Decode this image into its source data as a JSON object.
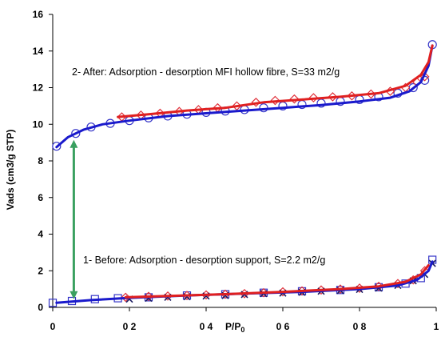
{
  "chart_data": {
    "type": "line",
    "title": "",
    "xlabel": "P/P",
    "xlabel_sub": "0",
    "ylabel": "Vads (cm3/g STP)",
    "xlim": [
      0,
      1
    ],
    "ylim": [
      0,
      16
    ],
    "x_ticks": [
      0,
      0.2,
      0.4,
      0.6,
      0.8,
      1
    ],
    "x_tick_labels": [
      "0",
      "0 2",
      "0 4",
      "0 6",
      "0 8",
      "1"
    ],
    "y_ticks": [
      0,
      2,
      4,
      6,
      8,
      10,
      12,
      14,
      16
    ],
    "y_tick_labels": [
      "0",
      "2",
      "4",
      "6",
      "8",
      "10",
      "12",
      "14",
      "16"
    ],
    "grid": false,
    "colors": {
      "adsorption_marker": "#3535c8",
      "adsorption_fit": "#1a1acc",
      "desorption_marker": "#e0303a",
      "desorption_fit": "#e02020",
      "support_cross": "#1a1a60",
      "arrow": "#3aa060"
    },
    "annotations": [
      "2- After: Adsorption - desorption  MFI hollow fibre, S=33 m2/g",
      "1- Before: Adsorption - desorption  support, S=2.2 m2/g"
    ],
    "series": [
      {
        "marker": "circle",
        "color_key": "adsorption_marker",
        "x": [
          0.01,
          0.06,
          0.1,
          0.15,
          0.2,
          0.25,
          0.3,
          0.35,
          0.4,
          0.45,
          0.5,
          0.55,
          0.6,
          0.65,
          0.7,
          0.75,
          0.8,
          0.85,
          0.9,
          0.94,
          0.97,
          0.99
        ],
        "y": [
          8.8,
          9.5,
          9.85,
          10.05,
          10.2,
          10.35,
          10.45,
          10.55,
          10.65,
          10.72,
          10.8,
          10.9,
          11.0,
          11.08,
          11.15,
          11.25,
          11.35,
          11.5,
          11.7,
          12.0,
          12.4,
          14.35
        ]
      },
      {
        "marker": "diamond",
        "color_key": "desorption_marker",
        "x": [
          0.18,
          0.23,
          0.28,
          0.33,
          0.38,
          0.43,
          0.48,
          0.53,
          0.58,
          0.63,
          0.68,
          0.73,
          0.78,
          0.83,
          0.88,
          0.92,
          0.95,
          0.97
        ],
        "y": [
          10.4,
          10.5,
          10.6,
          10.7,
          10.8,
          10.9,
          11.0,
          11.2,
          11.3,
          11.38,
          11.45,
          11.5,
          11.55,
          11.65,
          11.8,
          12.0,
          12.3,
          12.6
        ]
      },
      {
        "marker": "line",
        "color_key": "adsorption_fit",
        "x": [
          0.01,
          0.04,
          0.08,
          0.13,
          0.2,
          0.3,
          0.4,
          0.5,
          0.6,
          0.7,
          0.8,
          0.88,
          0.93,
          0.96,
          0.98,
          0.99
        ],
        "y": [
          8.75,
          9.3,
          9.7,
          10.0,
          10.2,
          10.45,
          10.6,
          10.75,
          10.9,
          11.05,
          11.25,
          11.45,
          11.8,
          12.3,
          13.2,
          14.3
        ]
      },
      {
        "marker": "line",
        "color_key": "desorption_fit",
        "x": [
          0.17,
          0.25,
          0.35,
          0.45,
          0.55,
          0.65,
          0.75,
          0.85,
          0.92,
          0.96,
          0.98,
          0.99
        ],
        "y": [
          10.4,
          10.55,
          10.75,
          10.9,
          11.2,
          11.35,
          11.5,
          11.7,
          12.1,
          12.7,
          13.4,
          14.3
        ]
      },
      {
        "marker": "square",
        "color_key": "adsorption_marker",
        "x": [
          0.0,
          0.05,
          0.11,
          0.17,
          0.25,
          0.35,
          0.45,
          0.55,
          0.65,
          0.75,
          0.85,
          0.92,
          0.96,
          0.99
        ],
        "y": [
          0.25,
          0.35,
          0.45,
          0.5,
          0.55,
          0.65,
          0.72,
          0.8,
          0.88,
          0.95,
          1.1,
          1.3,
          1.6,
          2.6
        ]
      },
      {
        "marker": "diamond",
        "color_key": "desorption_marker",
        "x": [
          0.19,
          0.25,
          0.3,
          0.35,
          0.4,
          0.45,
          0.5,
          0.55,
          0.6,
          0.65,
          0.7,
          0.75,
          0.8,
          0.85,
          0.9,
          0.94,
          0.97
        ],
        "y": [
          0.55,
          0.6,
          0.62,
          0.65,
          0.68,
          0.72,
          0.75,
          0.8,
          0.85,
          0.9,
          0.95,
          1.0,
          1.05,
          1.15,
          1.3,
          1.5,
          2.0
        ]
      },
      {
        "marker": "cross",
        "color_key": "support_cross",
        "x": [
          0.2,
          0.25,
          0.3,
          0.35,
          0.4,
          0.45,
          0.5,
          0.55,
          0.6,
          0.65,
          0.7,
          0.75,
          0.8,
          0.85,
          0.9,
          0.94,
          0.97,
          0.99
        ],
        "y": [
          0.45,
          0.5,
          0.55,
          0.58,
          0.62,
          0.65,
          0.7,
          0.75,
          0.78,
          0.82,
          0.88,
          0.92,
          0.98,
          1.05,
          1.2,
          1.45,
          1.8,
          2.4
        ]
      },
      {
        "marker": "line",
        "color_key": "adsorption_fit",
        "x": [
          0.01,
          0.1,
          0.2,
          0.35,
          0.5,
          0.65,
          0.8,
          0.9,
          0.95,
          0.98,
          0.99
        ],
        "y": [
          0.25,
          0.4,
          0.52,
          0.65,
          0.75,
          0.85,
          1.0,
          1.2,
          1.5,
          2.0,
          2.5
        ]
      },
      {
        "marker": "line",
        "color_key": "desorption_fit",
        "x": [
          0.19,
          0.3,
          0.45,
          0.6,
          0.75,
          0.85,
          0.92,
          0.96,
          0.98
        ],
        "y": [
          0.55,
          0.62,
          0.72,
          0.85,
          1.0,
          1.15,
          1.4,
          1.8,
          2.3
        ]
      }
    ],
    "arrow": {
      "x": 0.055,
      "y_from": 0.45,
      "y_to": 9.15
    }
  }
}
